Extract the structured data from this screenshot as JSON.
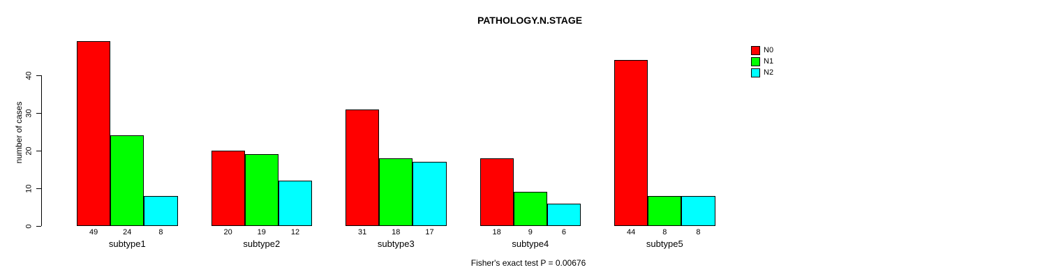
{
  "title": "PATHOLOGY.N.STAGE",
  "footnote": "Fisher's exact test P = 0.00676",
  "y_axis": {
    "label": "number of cases",
    "ticks": [
      0,
      10,
      20,
      30,
      40
    ]
  },
  "legend": {
    "position": "top-right",
    "entries": [
      {
        "label": "N0",
        "color": "#ff0000"
      },
      {
        "label": "N1",
        "color": "#00ff00"
      },
      {
        "label": "N2",
        "color": "#00ffff"
      }
    ]
  },
  "chart_data": {
    "type": "bar",
    "title": "PATHOLOGY.N.STAGE",
    "xlabel": "",
    "ylabel": "number of cases",
    "categories": [
      "subtype1",
      "subtype2",
      "subtype3",
      "subtype4",
      "subtype5"
    ],
    "series": [
      {
        "name": "N0",
        "color": "#ff0000",
        "values": [
          49,
          20,
          31,
          18,
          44
        ]
      },
      {
        "name": "N1",
        "color": "#00ff00",
        "values": [
          24,
          19,
          18,
          9,
          8
        ]
      },
      {
        "name": "N2",
        "color": "#00ffff",
        "values": [
          8,
          12,
          17,
          6,
          8
        ]
      }
    ],
    "bar_value_labels": [
      [
        49,
        24,
        8
      ],
      [
        20,
        19,
        12
      ],
      [
        31,
        18,
        17
      ],
      [
        18,
        9,
        6
      ],
      [
        44,
        8,
        8
      ]
    ],
    "ylim": [
      0,
      49
    ],
    "yticks": [
      0,
      10,
      20,
      30,
      40
    ],
    "grid": false,
    "legend_position": "top-right",
    "annotation": "Fisher's exact test P = 0.00676"
  }
}
